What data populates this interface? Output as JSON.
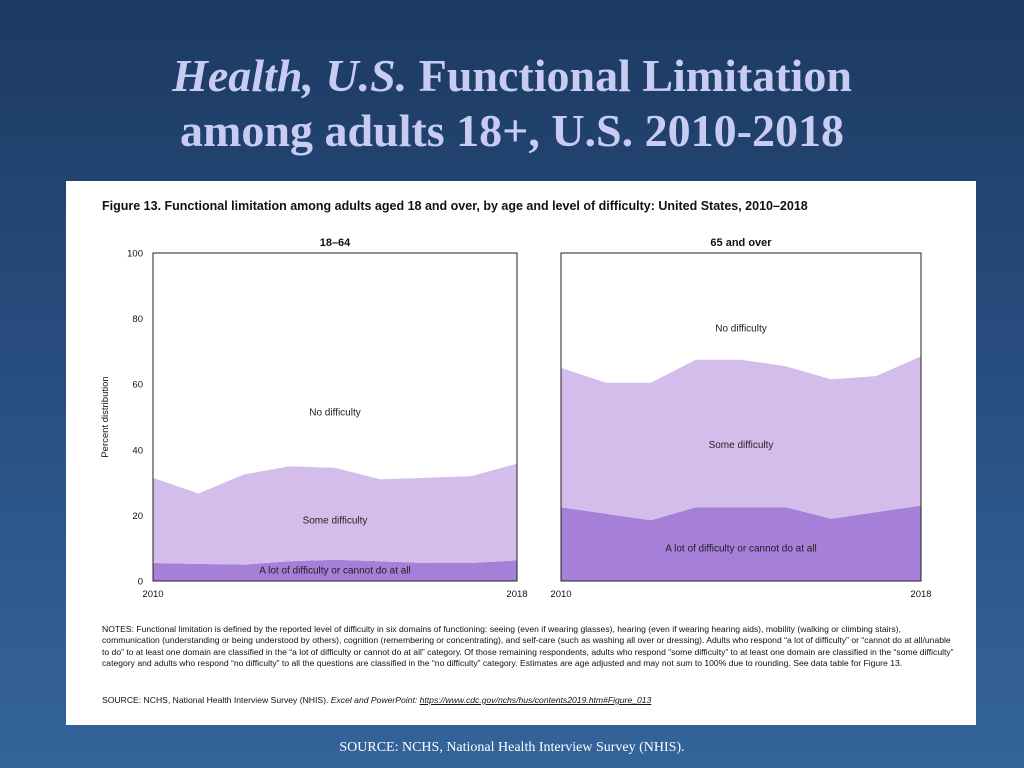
{
  "slide": {
    "title_italic": "Health, U.S.",
    "title_rest_line1": "Functional Limitation",
    "title_line2": "among adults 18+, U.S. 2010-2018",
    "footer_source": "SOURCE: NCHS, National Health Interview Survey (NHIS)."
  },
  "figure": {
    "title": "Figure 13. Functional limitation among adults aged 18 and over, by age and level of difficulty: United States, 2010–2018",
    "notes": "NOTES: Functional limitation is defined by the reported level of difficulty in six domains of functioning: seeing (even if wearing glasses), hearing (even if wearing hearing aids), mobility (walking or climbing stairs), communication (understanding or being understood by others), cognition (remembering or concentrating), and self-care (such as washing all over or dressing). Adults who respond “a lot of difficulty” or “cannot do at all/unable to do” to at least one domain are classified in the “a lot of difficulty or cannot do at all” category. Of those remaining respondents, adults who respond “some difficulty” to at least one domain are classified in the “some difficulty” category and adults who respond “no difficulty” to all the questions are classified in the “no difficulty” category. Estimates are age adjusted and may not sum to 100% due to rounding. See data table for Figure 13.",
    "source_prefix": "SOURCE: NCHS, National Health Interview Survey (NHIS).",
    "source_italic": "Excel and PowerPoint:",
    "source_link": "https://www.cdc.gov/nchs/hus/contents2019.htm#Figure_013"
  },
  "colors": {
    "lot": "#a67fd8",
    "some": "#d5bdeb",
    "none": "#ffffff",
    "axis": "#222222"
  },
  "chart_data": [
    {
      "type": "area",
      "stacked": true,
      "title": "18–64",
      "ylabel": "Percent distribution",
      "ylim": [
        0,
        100
      ],
      "yticks": [
        0,
        20,
        40,
        60,
        80,
        100
      ],
      "x": [
        2010,
        2011,
        2012,
        2013,
        2014,
        2015,
        2016,
        2017,
        2018
      ],
      "xtick_labels": [
        "2010",
        "2018"
      ],
      "series": [
        {
          "name": "A lot of difficulty or cannot do at all",
          "values": [
            5.5,
            5.2,
            5.0,
            6.0,
            6.5,
            6.0,
            5.5,
            5.5,
            6.3
          ]
        },
        {
          "name": "Some difficulty",
          "values": [
            26.0,
            21.5,
            27.5,
            29.0,
            28.0,
            25.0,
            26.0,
            26.5,
            29.5
          ]
        },
        {
          "name": "No difficulty",
          "values": [
            68.5,
            73.3,
            67.5,
            65.0,
            65.5,
            69.0,
            68.5,
            68.0,
            64.2
          ]
        }
      ],
      "labels": [
        "No difficulty",
        "Some difficulty",
        "A lot of difficulty or cannot do at all"
      ]
    },
    {
      "type": "area",
      "stacked": true,
      "title": "65 and over",
      "ylabel": "",
      "ylim": [
        0,
        100
      ],
      "x": [
        2010,
        2011,
        2012,
        2013,
        2014,
        2015,
        2016,
        2017,
        2018
      ],
      "xtick_labels": [
        "2010",
        "2018"
      ],
      "series": [
        {
          "name": "A lot of difficulty or cannot do at all",
          "values": [
            22.5,
            20.5,
            18.5,
            22.5,
            22.5,
            22.5,
            19.0,
            21.0,
            23.0
          ]
        },
        {
          "name": "Some difficulty",
          "values": [
            42.5,
            40.0,
            42.0,
            45.0,
            45.0,
            43.0,
            42.5,
            41.5,
            45.5
          ]
        },
        {
          "name": "No difficulty",
          "values": [
            35.0,
            39.5,
            39.5,
            32.5,
            32.5,
            34.5,
            38.5,
            37.5,
            31.5
          ]
        }
      ],
      "labels": [
        "No difficulty",
        "Some difficulty",
        "A lot of difficulty or cannot do at all"
      ]
    }
  ]
}
